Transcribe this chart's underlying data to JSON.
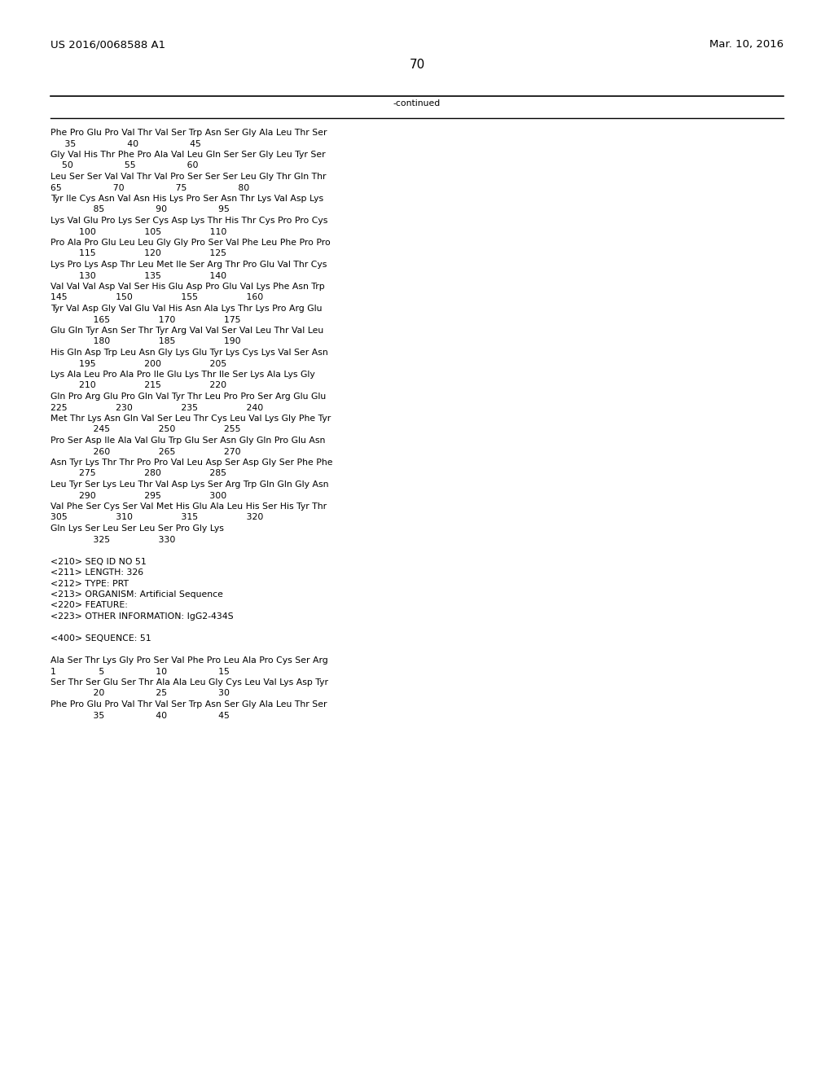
{
  "bg_color": "#ffffff",
  "header_left": "US 2016/0068588 A1",
  "header_right": "Mar. 10, 2016",
  "page_number": "70",
  "continued_text": "-continued",
  "header_fontsize": 9.5,
  "page_num_fontsize": 11,
  "body_fontsize": 7.8,
  "lines": [
    "Phe Pro Glu Pro Val Thr Val Ser Trp Asn Ser Gly Ala Leu Thr Ser",
    "     35                  40                  45",
    "Gly Val His Thr Phe Pro Ala Val Leu Gln Ser Ser Gly Leu Tyr Ser",
    "    50                  55                  60",
    "Leu Ser Ser Val Val Thr Val Pro Ser Ser Ser Leu Gly Thr Gln Thr",
    "65                  70                  75                  80",
    "Tyr Ile Cys Asn Val Asn His Lys Pro Ser Asn Thr Lys Val Asp Lys",
    "               85                  90                  95",
    "Lys Val Glu Pro Lys Ser Cys Asp Lys Thr His Thr Cys Pro Pro Cys",
    "          100                 105                 110",
    "Pro Ala Pro Glu Leu Leu Gly Gly Pro Ser Val Phe Leu Phe Pro Pro",
    "          115                 120                 125",
    "Lys Pro Lys Asp Thr Leu Met Ile Ser Arg Thr Pro Glu Val Thr Cys",
    "          130                 135                 140",
    "Val Val Val Asp Val Ser His Glu Asp Pro Glu Val Lys Phe Asn Trp",
    "145                 150                 155                 160",
    "Tyr Val Asp Gly Val Glu Val His Asn Ala Lys Thr Lys Pro Arg Glu",
    "               165                 170                 175",
    "Glu Gln Tyr Asn Ser Thr Tyr Arg Val Val Ser Val Leu Thr Val Leu",
    "               180                 185                 190",
    "His Gln Asp Trp Leu Asn Gly Lys Glu Tyr Lys Cys Lys Val Ser Asn",
    "          195                 200                 205",
    "Lys Ala Leu Pro Ala Pro Ile Glu Lys Thr Ile Ser Lys Ala Lys Gly",
    "          210                 215                 220",
    "Gln Pro Arg Glu Pro Gln Val Tyr Thr Leu Pro Pro Ser Arg Glu Glu",
    "225                 230                 235                 240",
    "Met Thr Lys Asn Gln Val Ser Leu Thr Cys Leu Val Lys Gly Phe Tyr",
    "               245                 250                 255",
    "Pro Ser Asp Ile Ala Val Glu Trp Glu Ser Asn Gly Gln Pro Glu Asn",
    "               260                 265                 270",
    "Asn Tyr Lys Thr Thr Pro Pro Val Leu Asp Ser Asp Gly Ser Phe Phe",
    "          275                 280                 285",
    "Leu Tyr Ser Lys Leu Thr Val Asp Lys Ser Arg Trp Gln Gln Gly Asn",
    "          290                 295                 300",
    "Val Phe Ser Cys Ser Val Met His Glu Ala Leu His Ser His Tyr Thr",
    "305                 310                 315                 320",
    "Gln Lys Ser Leu Ser Leu Ser Pro Gly Lys",
    "               325                 330",
    "",
    "<210> SEQ ID NO 51",
    "<211> LENGTH: 326",
    "<212> TYPE: PRT",
    "<213> ORGANISM: Artificial Sequence",
    "<220> FEATURE:",
    "<223> OTHER INFORMATION: IgG2-434S",
    "",
    "<400> SEQUENCE: 51",
    "",
    "Ala Ser Thr Lys Gly Pro Ser Val Phe Pro Leu Ala Pro Cys Ser Arg",
    "1               5                  10                  15",
    "Ser Thr Ser Glu Ser Thr Ala Ala Leu Gly Cys Leu Val Lys Asp Tyr",
    "               20                  25                  30",
    "Phe Pro Glu Pro Val Thr Val Ser Trp Asn Ser Gly Ala Leu Thr Ser",
    "               35                  40                  45"
  ]
}
